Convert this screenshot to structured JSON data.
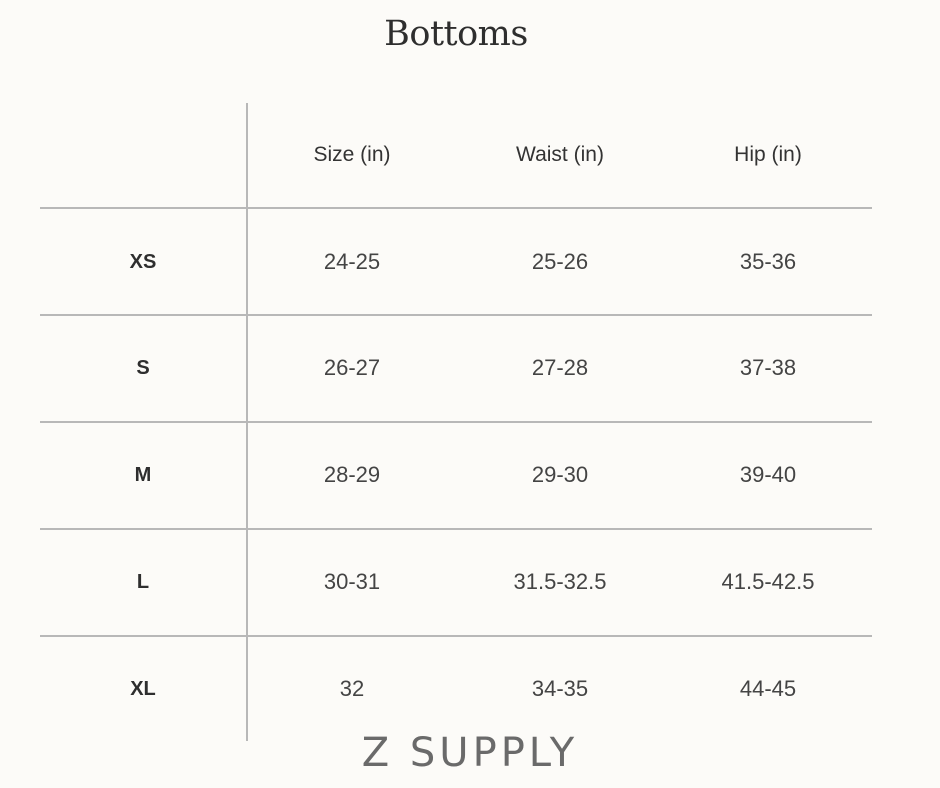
{
  "title": "Bottoms",
  "columns": [
    "",
    "Size (in)",
    "Waist (in)",
    "Hip (in)"
  ],
  "rows": [
    {
      "label": "XS",
      "size": "24-25",
      "waist": "25-26",
      "hip": "35-36"
    },
    {
      "label": "S",
      "size": "26-27",
      "waist": "27-28",
      "hip": "37-38"
    },
    {
      "label": "M",
      "size": "28-29",
      "waist": "29-30",
      "hip": "39-40"
    },
    {
      "label": "L",
      "size": "30-31",
      "waist": "31.5-32.5",
      "hip": "41.5-42.5"
    },
    {
      "label": "XL",
      "size": "32",
      "waist": "34-35",
      "hip": "44-45"
    }
  ],
  "brand": "Z SUPPLY",
  "colors": {
    "background": "#fcfbf8",
    "rule": "#b8b8b8",
    "text": "#444444"
  }
}
